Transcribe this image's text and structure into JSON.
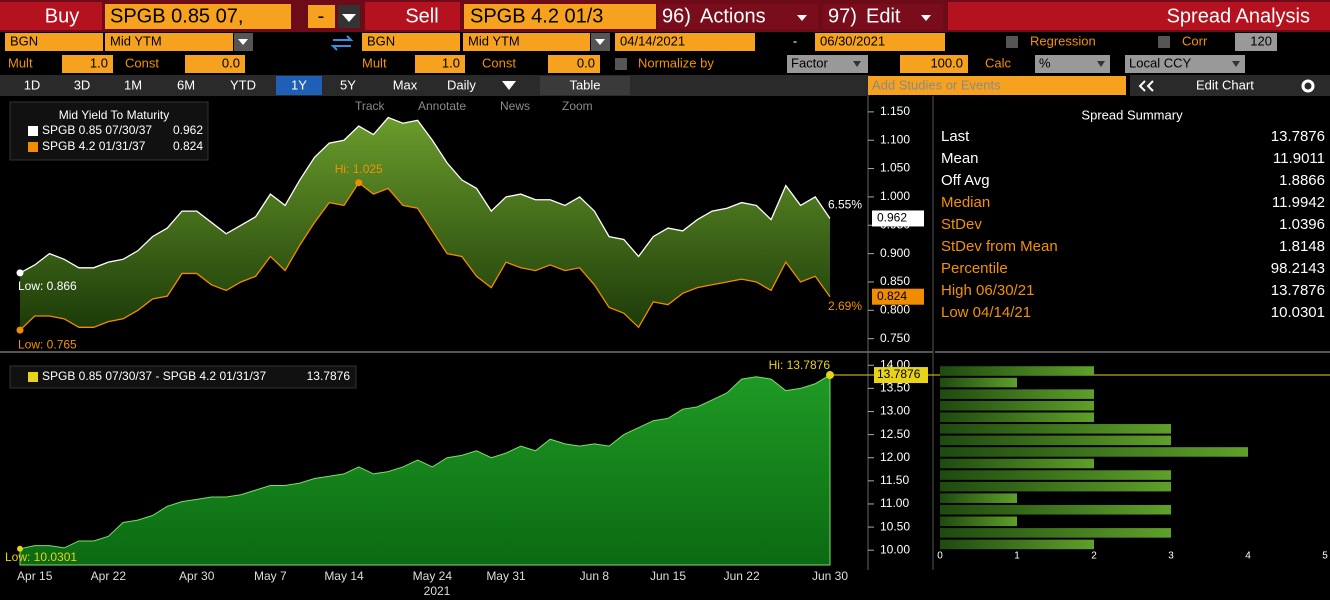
{
  "toolbar": {
    "buy": "Buy",
    "buy_ticker": "SPGB 0.85 07,",
    "minus": "-",
    "sell": "Sell",
    "sell_ticker": "SPGB 4.2 01/3",
    "actions_num": "96)",
    "actions": "Actions",
    "edit_num": "97)",
    "edit": "Edit",
    "panel_title": "Spread Analysis",
    "source1": "BGN",
    "field1": "Mid YTM",
    "source2": "BGN",
    "field2": "Mid YTM",
    "start_date": "04/14/2021",
    "date_sep": "-",
    "end_date": "06/30/2021",
    "regression": "Regression",
    "corr": "Corr",
    "corr_window": "120",
    "mult1_label": "Mult",
    "mult1": "1.0",
    "const1_label": "Const",
    "const1": "0.0",
    "mult2_label": "Mult",
    "mult2": "1.0",
    "const2_label": "Const",
    "const2": "0.0",
    "normalize": "Normalize by",
    "normalize_mode": "Factor",
    "factor": "100.0",
    "calc": "Calc",
    "calc_mode": "%",
    "currency": "Local CCY",
    "ranges": [
      "1D",
      "3D",
      "1M",
      "6M",
      "YTD",
      "1Y",
      "5Y",
      "Max"
    ],
    "frequency": "Daily",
    "table": "Table",
    "studies": "Add Studies or Events",
    "edit_chart": "Edit Chart"
  },
  "chart_tools": [
    "Track",
    "Annotate",
    "News",
    "Zoom"
  ],
  "chart_data": [
    {
      "type": "line",
      "title": "Mid Yield To Maturity",
      "ylim": [
        0.73,
        1.178
      ],
      "yticks": [
        {
          "value": 0.75,
          "label": "0.750"
        },
        {
          "value": 0.8,
          "label": "0.800"
        },
        {
          "value": 0.85,
          "label": "0.850"
        },
        {
          "value": 0.9,
          "label": "0.900"
        },
        {
          "value": 0.95,
          "label": "0.950"
        },
        {
          "value": 1.0,
          "label": "1.000"
        },
        {
          "value": 1.05,
          "label": "1.050"
        },
        {
          "value": 1.1,
          "label": "1.100"
        },
        {
          "value": 1.15,
          "label": "1.150"
        }
      ],
      "series": [
        {
          "name": "SPGB 0.85 07/30/37",
          "color": "#ffffff",
          "values": [
            0.866,
            0.88,
            0.9,
            0.89,
            0.875,
            0.875,
            0.885,
            0.89,
            0.905,
            0.93,
            0.945,
            0.975,
            0.975,
            0.955,
            0.935,
            0.95,
            0.965,
            1.005,
            0.985,
            1.03,
            1.07,
            1.095,
            1.1,
            1.125,
            1.11,
            1.14,
            1.13,
            1.135,
            1.1,
            1.06,
            1.03,
            1.015,
            0.975,
            1.0,
            1.005,
            0.995,
            0.995,
            0.985,
            1.0,
            0.975,
            0.93,
            0.925,
            0.895,
            0.93,
            0.945,
            0.94,
            0.96,
            0.975,
            0.98,
            0.99,
            0.985,
            0.96,
            1.02,
            0.985,
            1.0,
            0.962
          ]
        },
        {
          "name": "SPGB 4.2 01/31/37",
          "color": "#f08c00",
          "values": [
            0.765,
            0.79,
            0.79,
            0.785,
            0.77,
            0.77,
            0.78,
            0.785,
            0.8,
            0.82,
            0.825,
            0.865,
            0.865,
            0.845,
            0.835,
            0.85,
            0.86,
            0.895,
            0.87,
            0.915,
            0.955,
            0.99,
            0.985,
            1.025,
            1.005,
            1.015,
            0.985,
            0.98,
            0.94,
            0.9,
            0.895,
            0.86,
            0.84,
            0.885,
            0.875,
            0.87,
            0.88,
            0.87,
            0.875,
            0.845,
            0.805,
            0.795,
            0.77,
            0.815,
            0.81,
            0.83,
            0.84,
            0.845,
            0.85,
            0.855,
            0.85,
            0.835,
            0.885,
            0.85,
            0.86,
            0.824
          ]
        }
      ],
      "annotations": [
        "Hi: 1.025",
        "Low: 0.866",
        "Low: 0.765",
        "6.55%",
        "2.69%"
      ]
    },
    {
      "type": "area",
      "xlabel": "2021",
      "ylim": [
        9.68,
        14.07
      ],
      "categories": [
        null,
        "Apr 15",
        null,
        null,
        null,
        null,
        "Apr 22",
        null,
        null,
        null,
        null,
        null,
        "Apr 30",
        null,
        null,
        null,
        null,
        "May 7",
        null,
        null,
        null,
        null,
        "May 14",
        null,
        null,
        null,
        null,
        null,
        "May 24",
        null,
        null,
        null,
        null,
        "May 31",
        null,
        null,
        null,
        null,
        null,
        "Jun 8",
        null,
        null,
        null,
        null,
        "Jun 15",
        null,
        null,
        null,
        null,
        "Jun 22",
        null,
        null,
        null,
        null,
        null,
        "Jun 30"
      ],
      "yticks": [
        {
          "value": 10,
          "label": "10.00"
        },
        {
          "value": 10.5,
          "label": "10.50"
        },
        {
          "value": 11,
          "label": "11.00"
        },
        {
          "value": 11.5,
          "label": "11.50"
        },
        {
          "value": 12,
          "label": "12.00"
        },
        {
          "value": 12.5,
          "label": "12.50"
        },
        {
          "value": 13,
          "label": "13.00"
        },
        {
          "value": 13.5,
          "label": "13.50"
        },
        {
          "value": 14,
          "label": "14.00"
        }
      ],
      "series": [
        {
          "name": "SPGB 0.85 07/30/37 - SPGB 4.2 01/31/37",
          "color": "#e8d21a",
          "values": [
            10.0301,
            10.1,
            10.1,
            10.05,
            10.2,
            10.2,
            10.3,
            10.6,
            10.65,
            10.75,
            10.95,
            11.05,
            11.1,
            11.15,
            11.15,
            11.2,
            11.3,
            11.4,
            11.4,
            11.45,
            11.55,
            11.6,
            11.65,
            11.8,
            11.65,
            11.7,
            11.8,
            11.95,
            11.8,
            12.0,
            12.05,
            12.15,
            12.0,
            12.1,
            12.25,
            12.15,
            12.4,
            12.3,
            12.25,
            12.3,
            12.25,
            12.5,
            12.65,
            12.8,
            12.85,
            13.05,
            13.1,
            13.25,
            13.4,
            13.7,
            13.75,
            13.7,
            13.45,
            13.5,
            13.6,
            13.7876
          ]
        }
      ],
      "annotations": [
        "Hi: 13.7876",
        "Low: 10.0301"
      ]
    },
    {
      "type": "histogram",
      "orientation": "horizontal",
      "bins": [
        10.0,
        10.25,
        10.5,
        10.75,
        11.0,
        11.25,
        11.5,
        11.75,
        12.0,
        12.25,
        12.5,
        12.75,
        13.0,
        13.25,
        13.5,
        13.75,
        14.0
      ],
      "values": [
        2,
        3,
        1,
        3,
        1,
        3,
        3,
        2,
        4,
        3,
        3,
        2,
        2,
        2,
        1,
        2
      ],
      "xlim": [
        0,
        5
      ],
      "xticks": [
        0,
        1,
        2,
        3,
        4,
        5
      ]
    }
  ],
  "summary": {
    "title": "Spread Summary",
    "rows": [
      [
        "Last",
        13.7876
      ],
      [
        "Mean",
        11.9011
      ],
      [
        "Off Avg",
        1.8866
      ],
      [
        "Median",
        11.9942
      ],
      [
        "StDev",
        1.0396
      ],
      [
        "StDev from Mean",
        1.8148
      ],
      [
        "Percentile",
        98.2143
      ],
      [
        "High 06/30/21",
        13.7876
      ],
      [
        "Low 04/14/21",
        10.0301
      ]
    ]
  }
}
